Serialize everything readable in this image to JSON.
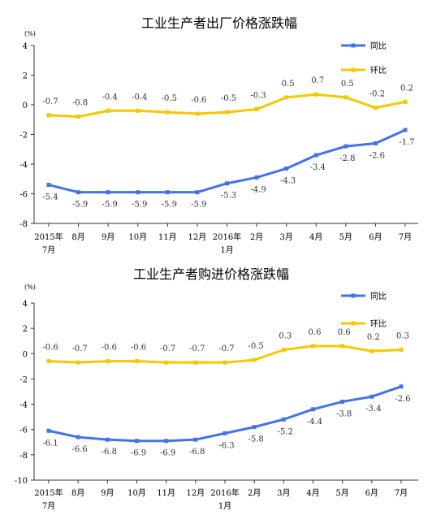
{
  "chart_data": [
    {
      "type": "line",
      "title": "工业生产者出厂价格涨跌幅",
      "unit": "(%)",
      "categories": [
        [
          "2015年",
          "7月"
        ],
        [
          "8月"
        ],
        [
          "9月"
        ],
        [
          "10月"
        ],
        [
          "11月"
        ],
        [
          "12月"
        ],
        [
          "2016年",
          "1月"
        ],
        [
          "2月"
        ],
        [
          "3月"
        ],
        [
          "4月"
        ],
        [
          "5月"
        ],
        [
          "6月"
        ],
        [
          "7月"
        ]
      ],
      "ylim": [
        -8,
        4
      ],
      "yticks": [
        -8,
        -6,
        -4,
        -2,
        0,
        2,
        4
      ],
      "legend": "top-right",
      "series": [
        {
          "name": "同比",
          "color": "#4472E8",
          "values": [
            -5.4,
            -5.9,
            -5.9,
            -5.9,
            -5.9,
            -5.9,
            -5.3,
            -4.9,
            -4.3,
            -3.4,
            -2.8,
            -2.6,
            -1.7
          ],
          "labels": [
            "-5.4",
            "-5.9",
            "-5.9",
            "-5.9",
            "-5.9",
            "-5.9",
            "-5.3",
            "-4.9",
            "-4.3",
            "-3.4",
            "-2.8",
            "-2.6",
            "-1.7"
          ]
        },
        {
          "name": "环比",
          "color": "#F5C800",
          "values": [
            -0.7,
            -0.8,
            -0.4,
            -0.4,
            -0.5,
            -0.6,
            -0.5,
            -0.3,
            0.5,
            0.7,
            0.5,
            -0.2,
            0.2
          ],
          "labels": [
            "-0.7",
            "-0.8",
            "-0.4",
            "-0.4",
            "-0.5",
            "-0.6",
            "-0.5",
            "-0.3",
            "0.5",
            "0.7",
            "0.5",
            "-0.2",
            "0.2"
          ]
        }
      ]
    },
    {
      "type": "line",
      "title": "工业生产者购进价格涨跌幅",
      "unit": "(%)",
      "categories": [
        [
          "2015年",
          "7月"
        ],
        [
          "8月"
        ],
        [
          "9月"
        ],
        [
          "10月"
        ],
        [
          "11月"
        ],
        [
          "12月"
        ],
        [
          "2016年",
          "1月"
        ],
        [
          "2月"
        ],
        [
          "3月"
        ],
        [
          "4月"
        ],
        [
          "5月"
        ],
        [
          "6月"
        ],
        [
          "7月"
        ]
      ],
      "ylim": [
        -10,
        4
      ],
      "yticks": [
        -10,
        -8,
        -6,
        -4,
        -2,
        0,
        2,
        4
      ],
      "legend": "top-right",
      "series": [
        {
          "name": "同比",
          "color": "#4472E8",
          "values": [
            -6.1,
            -6.6,
            -6.8,
            -6.9,
            -6.9,
            -6.8,
            -6.3,
            -5.8,
            -5.2,
            -4.4,
            -3.8,
            -3.4,
            -2.6
          ],
          "labels": [
            "-6.1",
            "-6.6",
            "-6.8",
            "-6.9",
            "-6.9",
            "-6.8",
            "-6.3",
            "-5.8",
            "-5.2",
            "-4.4",
            "-3.8",
            "-3.4",
            "-2.6"
          ]
        },
        {
          "name": "环比",
          "color": "#F5C800",
          "values": [
            -0.6,
            -0.7,
            -0.6,
            -0.6,
            -0.7,
            -0.7,
            -0.7,
            -0.5,
            0.3,
            0.6,
            0.6,
            0.2,
            0.3
          ],
          "labels": [
            "-0.6",
            "-0.7",
            "-0.6",
            "-0.6",
            "-0.7",
            "-0.7",
            "-0.7",
            "-0.5",
            "0.3",
            "0.6",
            "0.6",
            "0.2",
            "0.3"
          ]
        }
      ]
    }
  ]
}
